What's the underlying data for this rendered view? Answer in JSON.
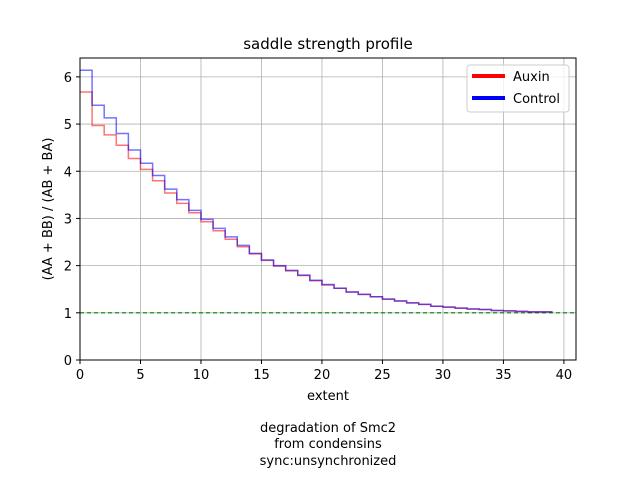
{
  "chart_data": {
    "type": "line",
    "title": "saddle strength profile",
    "xlabel": "extent",
    "ylabel": "(AA + BB) / (AB + BA)",
    "xlim": [
      0,
      41
    ],
    "ylim": [
      0,
      6.4
    ],
    "x_ticks": [
      0,
      5,
      10,
      15,
      20,
      25,
      30,
      35,
      40
    ],
    "y_ticks": [
      0,
      1,
      2,
      3,
      4,
      5,
      6
    ],
    "grid": true,
    "legend_position": "top-right",
    "x": [
      0,
      1,
      2,
      3,
      4,
      5,
      6,
      7,
      8,
      9,
      10,
      11,
      12,
      13,
      14,
      15,
      16,
      17,
      18,
      19,
      20,
      21,
      22,
      23,
      24,
      25,
      26,
      27,
      28,
      29,
      30,
      31,
      32,
      33,
      34,
      35,
      36,
      37,
      38,
      39
    ],
    "series": [
      {
        "name": "Auxin",
        "color": "#ff0000",
        "values": [
          5.68,
          4.97,
          4.77,
          4.55,
          4.27,
          4.04,
          3.8,
          3.54,
          3.32,
          3.12,
          2.93,
          2.74,
          2.56,
          2.4,
          2.25,
          2.11,
          1.99,
          1.89,
          1.79,
          1.68,
          1.59,
          1.52,
          1.44,
          1.39,
          1.34,
          1.29,
          1.25,
          1.21,
          1.18,
          1.14,
          1.12,
          1.1,
          1.08,
          1.07,
          1.05,
          1.04,
          1.03,
          1.02,
          1.02,
          1.01
        ]
      },
      {
        "name": "Control",
        "color": "#0000ff",
        "values": [
          6.14,
          5.4,
          5.13,
          4.8,
          4.45,
          4.17,
          3.91,
          3.62,
          3.4,
          3.17,
          2.98,
          2.79,
          2.61,
          2.43,
          2.26,
          2.12,
          2.0,
          1.9,
          1.8,
          1.69,
          1.6,
          1.52,
          1.44,
          1.39,
          1.34,
          1.29,
          1.25,
          1.21,
          1.18,
          1.14,
          1.12,
          1.1,
          1.08,
          1.07,
          1.05,
          1.04,
          1.03,
          1.02,
          1.02,
          1.01
        ]
      }
    ],
    "reference_line": {
      "y": 1,
      "color": "#008000",
      "style": "dashed"
    },
    "caption": [
      "degradation of Smc2",
      "from condensins",
      "sync:unsynchronized"
    ]
  }
}
